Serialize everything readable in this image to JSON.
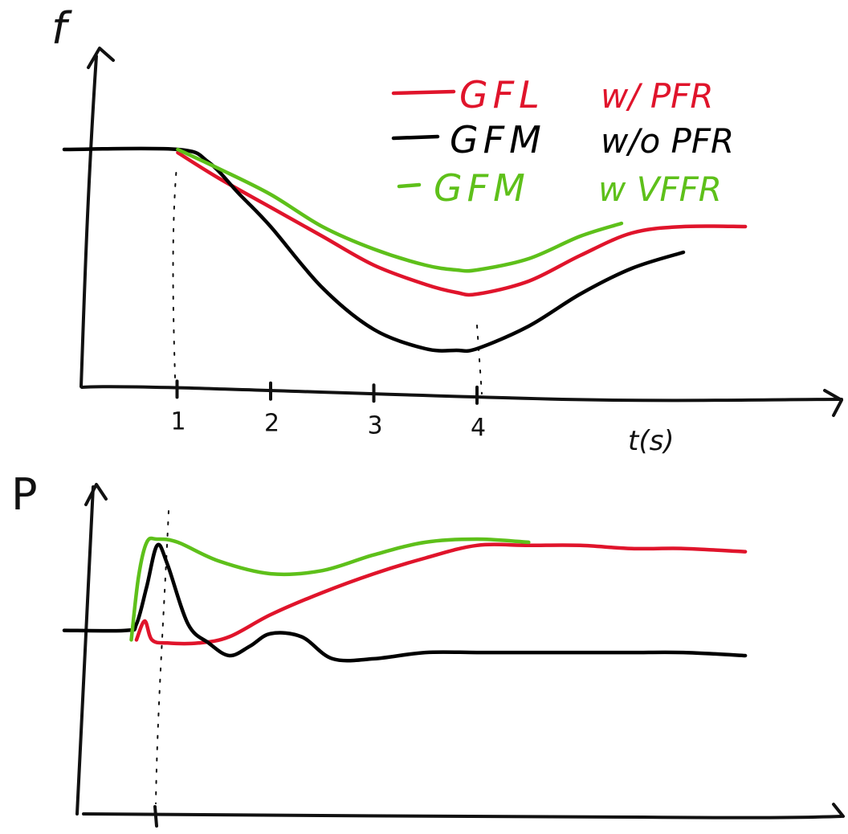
{
  "chart_data": [
    {
      "type": "line",
      "ylabel": "f",
      "xlabel": "t(s)",
      "xticks": [
        "1",
        "2",
        "3",
        "4"
      ],
      "xlim": [
        0,
        6.6
      ],
      "ylim": [
        0,
        1
      ],
      "grid": false,
      "legend_position": "top-right",
      "series": [
        {
          "name": "GFL w/ PFR",
          "color": "#e0142b",
          "x": [
            1.1,
            1.5,
            2.0,
            2.5,
            3.0,
            3.5,
            3.8,
            4.0,
            4.5,
            5.0,
            5.5,
            6.0,
            6.6
          ],
          "y": [
            0.74,
            0.66,
            0.57,
            0.48,
            0.39,
            0.33,
            0.305,
            0.3,
            0.34,
            0.42,
            0.49,
            0.51,
            0.51
          ]
        },
        {
          "name": "GFM w/o PFR",
          "color": "#000000",
          "x": [
            0.0,
            1.1,
            1.4,
            1.7,
            2.0,
            2.5,
            3.0,
            3.5,
            3.8,
            4.0,
            4.5,
            5.0,
            5.5,
            6.0
          ],
          "y": [
            0.75,
            0.75,
            0.71,
            0.61,
            0.51,
            0.32,
            0.19,
            0.13,
            0.125,
            0.13,
            0.2,
            0.3,
            0.38,
            0.43
          ]
        },
        {
          "name": "GFM w VFFR",
          "color": "#5ec01a",
          "x": [
            1.1,
            1.5,
            2.0,
            2.5,
            3.0,
            3.5,
            3.8,
            4.0,
            4.5,
            5.0,
            5.4
          ],
          "y": [
            0.75,
            0.69,
            0.61,
            0.51,
            0.44,
            0.39,
            0.375,
            0.375,
            0.41,
            0.48,
            0.52
          ]
        }
      ],
      "legend": [
        {
          "label": "GFL",
          "qualifier": "w/ PFR",
          "color": "#e0142b"
        },
        {
          "label": "GFM",
          "qualifier": "w/o PFR",
          "color": "#000000"
        },
        {
          "label": "GFM",
          "qualifier": "w VFFR",
          "color": "#5ec01a"
        }
      ]
    },
    {
      "type": "line",
      "ylabel": "P",
      "xlabel": "",
      "xlim": [
        0,
        6.6
      ],
      "ylim": [
        0,
        1
      ],
      "grid": false,
      "series": [
        {
          "name": "GFL w/ PFR",
          "color": "#e0142b",
          "x": [
            0.7,
            0.78,
            0.85,
            1.0,
            1.3,
            1.6,
            2.0,
            2.5,
            3.0,
            3.5,
            4.0,
            4.5,
            5.0,
            5.5,
            6.0,
            6.6
          ],
          "y": [
            0.55,
            0.61,
            0.55,
            0.54,
            0.54,
            0.56,
            0.63,
            0.7,
            0.76,
            0.81,
            0.85,
            0.85,
            0.85,
            0.84,
            0.84,
            0.83
          ]
        },
        {
          "name": "GFM w/o PFR",
          "color": "#000000",
          "x": [
            0.0,
            0.6,
            0.7,
            0.8,
            0.9,
            1.0,
            1.2,
            1.4,
            1.6,
            1.8,
            2.0,
            2.3,
            2.6,
            3.0,
            3.5,
            4.0,
            4.5,
            5.0,
            5.5,
            6.0,
            6.6
          ],
          "y": [
            0.58,
            0.58,
            0.6,
            0.72,
            0.85,
            0.79,
            0.6,
            0.54,
            0.5,
            0.53,
            0.57,
            0.56,
            0.49,
            0.49,
            0.51,
            0.51,
            0.51,
            0.51,
            0.51,
            0.51,
            0.5
          ]
        },
        {
          "name": "GFM w VFFR",
          "color": "#5ec01a",
          "x": [
            0.65,
            0.72,
            0.8,
            0.9,
            1.1,
            1.5,
            2.0,
            2.5,
            3.0,
            3.5,
            4.0,
            4.5
          ],
          "y": [
            0.55,
            0.75,
            0.86,
            0.87,
            0.86,
            0.8,
            0.76,
            0.77,
            0.82,
            0.86,
            0.87,
            0.86
          ]
        }
      ]
    }
  ]
}
